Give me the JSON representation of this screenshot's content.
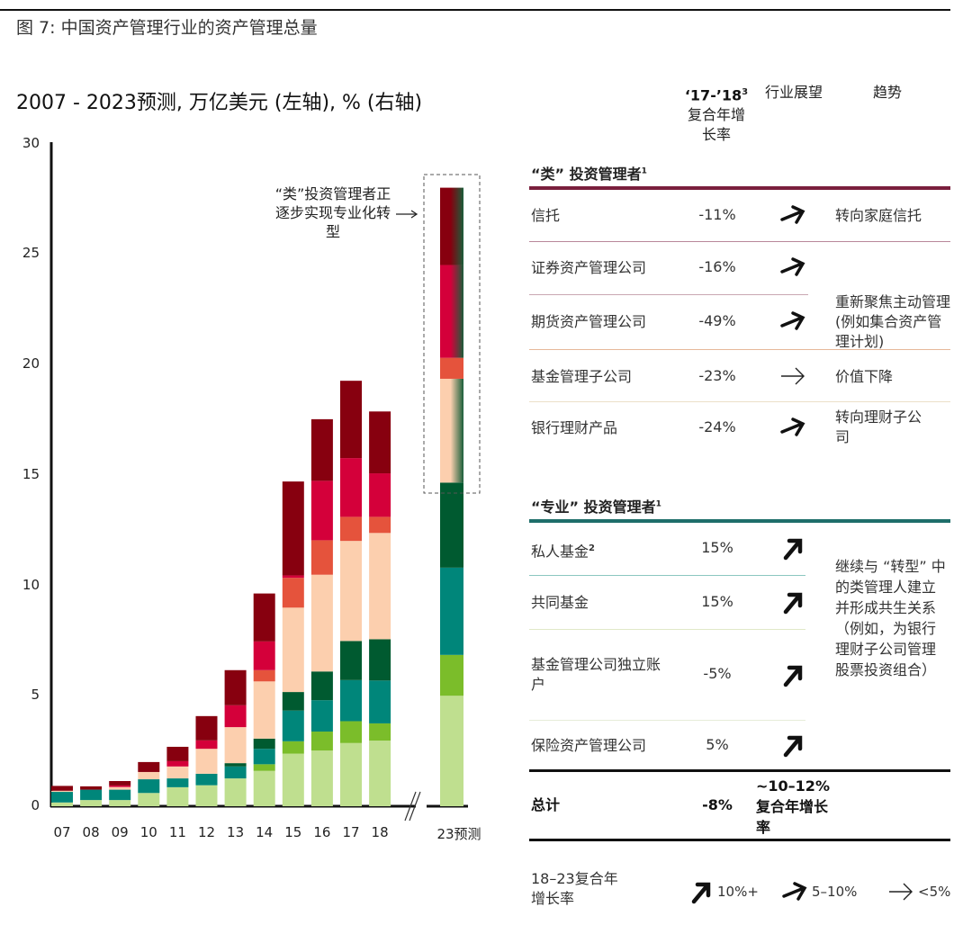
{
  "figure_title": "图 7: 中国资产管理行业的资产管理总量",
  "chart_data": {
    "type": "bar",
    "stacked": true,
    "title": "2007 - 2023预测, 万亿美元 (左轴), % (右轴)",
    "categories": [
      "07",
      "08",
      "09",
      "10",
      "11",
      "12",
      "13",
      "14",
      "15",
      "16",
      "17",
      "18",
      "23预测"
    ],
    "ylim": [
      0,
      30
    ],
    "yticks": [
      "0",
      "5",
      "10",
      "15",
      "20",
      "25",
      "30"
    ],
    "grid": false,
    "axis_break_before_last": true,
    "series_colors": [
      "#bfdf8f",
      "#7bbd2a",
      "#00867a",
      "#005a30",
      "#fccfae",
      "#e5533c",
      "#d4003a",
      "#87000f"
    ],
    "series": [
      {
        "values": [
          0.17,
          0.28,
          0.28,
          0.6,
          0.86,
          0.95,
          1.26,
          1.6,
          2.38,
          2.52,
          2.86,
          2.97,
          5.0
        ]
      },
      {
        "values": [
          0,
          0,
          0,
          0,
          0,
          0,
          0,
          0.3,
          0.56,
          0.86,
          0.99,
          0.78,
          1.85
        ]
      },
      {
        "values": [
          0.48,
          0.47,
          0.47,
          0.62,
          0.4,
          0.52,
          0.54,
          0.7,
          1.39,
          1.42,
          1.86,
          1.94,
          3.95
        ]
      },
      {
        "values": [
          0,
          0,
          0,
          0,
          0,
          0,
          0.15,
          0.46,
          0.84,
          1.3,
          1.77,
          1.87,
          3.85
        ]
      },
      {
        "values": [
          0.05,
          0,
          0.12,
          0.33,
          0.54,
          1.13,
          1.63,
          2.59,
          3.82,
          4.38,
          4.53,
          4.81,
          4.7
        ]
      },
      {
        "values": [
          0,
          0,
          0,
          0,
          0,
          0,
          0,
          0.51,
          1.35,
          1.56,
          1.09,
          0.73,
          0.95
        ]
      },
      {
        "values": [
          0,
          0,
          0.07,
          0,
          0.24,
          0.38,
          0.99,
          1.3,
          0.11,
          2.69,
          2.66,
          1.97,
          4.2
        ]
      },
      {
        "values": [
          0.22,
          0.15,
          0.2,
          0.45,
          0.65,
          1.1,
          1.59,
          2.17,
          4.25,
          2.79,
          3.5,
          2.8,
          3.5
        ]
      }
    ],
    "annotation": "“类”投资管理者正逐步实现专业化转型",
    "forecast_transition_color": "#1a5e3a"
  },
  "table": {
    "headers": {
      "cagr": "‘17-’18",
      "cagr_sup": "3",
      "cagr_sub": "复合年增长率",
      "outlook": "行业展望",
      "trend": "趋势"
    },
    "quasi": {
      "title": "“类” 投资管理者",
      "sup": "1",
      "color": "#7a1f3d",
      "rows": [
        {
          "name": "信托",
          "cagr": "-11%",
          "outlook": "medium",
          "trend": "转向家庭信托"
        },
        {
          "name": "证券资产管理公司",
          "cagr": "-16%",
          "outlook": "medium"
        },
        {
          "name": "期货资产管理公司",
          "cagr": "-49%",
          "outlook": "medium"
        },
        {
          "name": "基金管理子公司",
          "cagr": "-23%",
          "outlook": "flat",
          "trend": "价值下降"
        },
        {
          "name": "银行理财产品",
          "cagr": "-24%",
          "outlook": "medium",
          "trend": "转向理财子公司"
        }
      ],
      "shared_trend": "重新聚焦主动管理 (例如集合资产管理计划)"
    },
    "pro": {
      "title": "“专业” 投资管理者",
      "sup": "1",
      "color": "#1e6e6a",
      "rows": [
        {
          "name": "私人基金",
          "sup": "2",
          "cagr": "15%",
          "outlook": "strong"
        },
        {
          "name": "共同基金",
          "cagr": "15%",
          "outlook": "strong"
        },
        {
          "name": "基金管理公司独立账户",
          "cagr": "-5%",
          "outlook": "strong"
        },
        {
          "name": "保险资产管理公司",
          "cagr": "5%",
          "outlook": "strong"
        }
      ],
      "shared_trend": "继续与 “转型” 中的类管理人建立并形成共生关系（例如，为银行理财子公司管理股票投资组合）"
    },
    "total": {
      "name": "总计",
      "cagr": "-8%",
      "outlook": "~10–12%复合年增长率"
    },
    "legend": {
      "title": "18–23复合年增长率",
      "items": [
        {
          "type": "strong",
          "label": "10%+"
        },
        {
          "type": "medium",
          "label": "5–10%"
        },
        {
          "type": "flat",
          "label": "<5%"
        }
      ]
    }
  }
}
